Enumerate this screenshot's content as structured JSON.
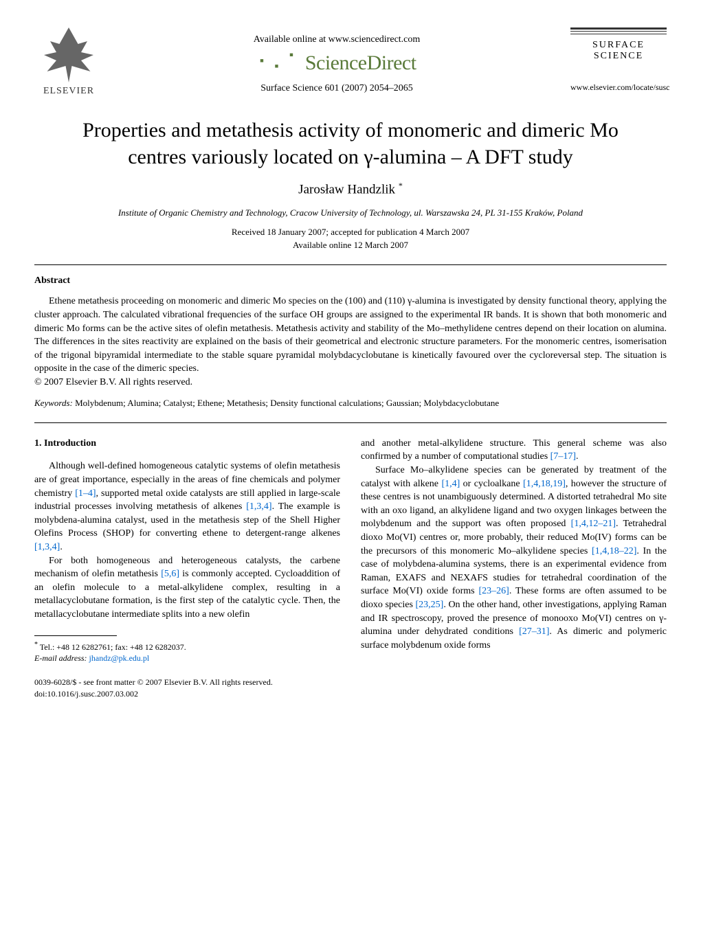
{
  "header": {
    "elsevier_label": "ELSEVIER",
    "available_online": "Available online at www.sciencedirect.com",
    "sciencedirect": "ScienceDirect",
    "journal_ref": "Surface Science 601 (2007) 2054–2065",
    "journal_name": "SURFACE SCIENCE",
    "journal_url": "www.elsevier.com/locate/susc"
  },
  "title": "Properties and metathesis activity of monomeric and dimeric Mo centres variously located on γ-alumina – A DFT study",
  "author": "Jarosław Handzlik",
  "author_marker": "*",
  "affiliation": "Institute of Organic Chemistry and Technology, Cracow University of Technology, ul. Warszawska 24, PL 31-155 Kraków, Poland",
  "dates_line1": "Received 18 January 2007; accepted for publication 4 March 2007",
  "dates_line2": "Available online 12 March 2007",
  "abstract_heading": "Abstract",
  "abstract_text": "Ethene metathesis proceeding on monomeric and dimeric Mo species on the (100) and (110) γ-alumina is investigated by density functional theory, applying the cluster approach. The calculated vibrational frequencies of the surface OH groups are assigned to the experimental IR bands. It is shown that both monomeric and dimeric Mo forms can be the active sites of olefin metathesis. Metathesis activity and stability of the Mo–methylidene centres depend on their location on alumina. The differences in the sites reactivity are explained on the basis of their geometrical and electronic structure parameters. For the monomeric centres, isomerisation of the trigonal bipyramidal intermediate to the stable square pyramidal molybdacyclobutane is kinetically favoured over the cycloreversal step. The situation is opposite in the case of the dimeric species.",
  "copyright": "© 2007 Elsevier B.V. All rights reserved.",
  "keywords_label": "Keywords:",
  "keywords_text": " Molybdenum; Alumina; Catalyst; Ethene; Metathesis; Density functional calculations; Gaussian; Molybdacyclobutane",
  "section_heading": "1. Introduction",
  "col1_p1_a": "Although well-defined homogeneous catalytic systems of olefin metathesis are of great importance, especially in the areas of fine chemicals and polymer chemistry ",
  "col1_p1_ref1": "[1–4]",
  "col1_p1_b": ", supported metal oxide catalysts are still applied in large-scale industrial processes involving metathesis of alkenes ",
  "col1_p1_ref2": "[1,3,4]",
  "col1_p1_c": ". The example is molybdena-alumina catalyst, used in the metathesis step of the Shell Higher Olefins Process (SHOP) for converting ethene to detergent-range alkenes ",
  "col1_p1_ref3": "[1,3,4]",
  "col1_p1_d": ".",
  "col1_p2_a": "For both homogeneous and heterogeneous catalysts, the carbene mechanism of olefin metathesis ",
  "col1_p2_ref1": "[5,6]",
  "col1_p2_b": " is commonly accepted. Cycloaddition of an olefin molecule to a metal-alkylidene complex, resulting in a metallacyclobutane formation, is the first step of the catalytic cycle. Then, the metallacyclobutane intermediate splits into a new olefin",
  "col2_p1_a": "and another metal-alkylidene structure. This general scheme was also confirmed by a number of computational studies ",
  "col2_p1_ref1": "[7–17]",
  "col2_p1_b": ".",
  "col2_p2_a": "Surface Mo–alkylidene species can be generated by treatment of the catalyst with alkene ",
  "col2_p2_ref1": "[1,4]",
  "col2_p2_b": " or cycloalkane ",
  "col2_p2_ref2": "[1,4,18,19]",
  "col2_p2_c": ", however the structure of these centres is not unambiguously determined. A distorted tetrahedral Mo site with an oxo ligand, an alkylidene ligand and two oxygen linkages between the molybdenum and the support was often proposed ",
  "col2_p2_ref3": "[1,4,12–21]",
  "col2_p2_d": ". Tetrahedral dioxo Mo(VI) centres or, more probably, their reduced Mo(IV) forms can be the precursors of this monomeric Mo–alkylidene species ",
  "col2_p2_ref4": "[1,4,18–22]",
  "col2_p2_e": ". In the case of molybdena-alumina systems, there is an experimental evidence from Raman, EXAFS and NEXAFS studies for tetrahedral coordination of the surface Mo(VI) oxide forms ",
  "col2_p2_ref5": "[23–26]",
  "col2_p2_f": ". These forms are often assumed to be dioxo species ",
  "col2_p2_ref6": "[23,25]",
  "col2_p2_g": ". On the other hand, other investigations, applying Raman and IR spectroscopy, proved the presence of monooxo Mo(VI) centres on γ-alumina under dehydrated conditions ",
  "col2_p2_ref7": "[27–31]",
  "col2_p2_h": ". As dimeric and polymeric surface molybdenum oxide forms",
  "footnote_contact": "Tel.: +48 12 6282761; fax: +48 12 6282037.",
  "footnote_email_label": "E-mail address:",
  "footnote_email": "jhandz@pk.edu.pl",
  "bottom_line1": "0039-6028/$ - see front matter © 2007 Elsevier B.V. All rights reserved.",
  "bottom_line2": "doi:10.1016/j.susc.2007.03.002"
}
